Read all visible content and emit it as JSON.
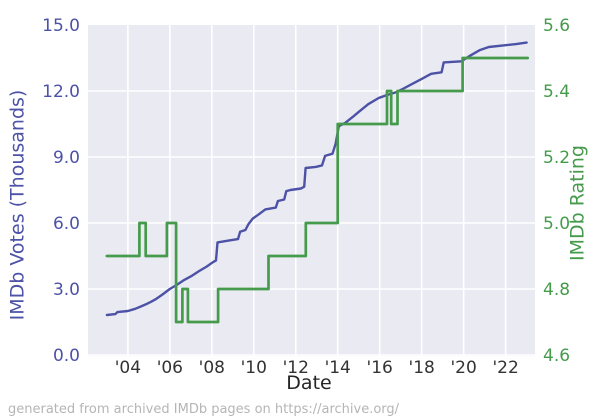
{
  "footer": {
    "text": "generated from archived IMDb pages on https://archive.org/"
  },
  "colors": {
    "votes_line": "#4c52a5",
    "rating_line": "#459b4b",
    "plot_background": "#eaeaf2",
    "gridline": "#ffffff",
    "x_tick_text": "#333333",
    "footer_text": "#b5b5b5",
    "figure_background": "#ffffff"
  },
  "chart_data": {
    "type": "line",
    "title": "",
    "xlabel": "Date",
    "ylabel_left": "IMDb Votes (Thousands)",
    "ylabel_right": "IMDb Rating",
    "grid": true,
    "legend": "none",
    "xlim": [
      2002.1,
      2023.4
    ],
    "ylim_left": [
      0,
      15
    ],
    "ylim_right": [
      4.6,
      5.6
    ],
    "x_ticks": [
      {
        "label": "'04",
        "year": 2004
      },
      {
        "label": "'06",
        "year": 2006
      },
      {
        "label": "'08",
        "year": 2008
      },
      {
        "label": "'10",
        "year": 2010
      },
      {
        "label": "'12",
        "year": 2012
      },
      {
        "label": "'14",
        "year": 2014
      },
      {
        "label": "'16",
        "year": 2016
      },
      {
        "label": "'18",
        "year": 2018
      },
      {
        "label": "'20",
        "year": 2020
      },
      {
        "label": "'22",
        "year": 2022
      }
    ],
    "left_ticks": [
      {
        "label": "0.0",
        "value": 0
      },
      {
        "label": "3.0",
        "value": 3
      },
      {
        "label": "6.0",
        "value": 6
      },
      {
        "label": "9.0",
        "value": 9
      },
      {
        "label": "12.0",
        "value": 12
      },
      {
        "label": "15.0",
        "value": 15
      }
    ],
    "right_ticks": [
      {
        "label": "4.6",
        "value": 4.6
      },
      {
        "label": "4.8",
        "value": 4.8
      },
      {
        "label": "5.0",
        "value": 5.0
      },
      {
        "label": "5.2",
        "value": 5.2
      },
      {
        "label": "5.4",
        "value": 5.4
      },
      {
        "label": "5.6",
        "value": 5.6
      }
    ],
    "series": [
      {
        "name": "IMDb Votes (Thousands)",
        "axis": "left",
        "style": "line",
        "color": "#4c52a5",
        "points": [
          [
            2003.0,
            1.82
          ],
          [
            2003.4,
            1.86
          ],
          [
            2003.5,
            1.95
          ],
          [
            2004.0,
            2.0
          ],
          [
            2004.35,
            2.1
          ],
          [
            2004.6,
            2.2
          ],
          [
            2004.85,
            2.3
          ],
          [
            2005.1,
            2.42
          ],
          [
            2005.35,
            2.55
          ],
          [
            2005.65,
            2.75
          ],
          [
            2006.0,
            3.0
          ],
          [
            2006.35,
            3.2
          ],
          [
            2006.7,
            3.42
          ],
          [
            2007.05,
            3.6
          ],
          [
            2007.4,
            3.82
          ],
          [
            2007.75,
            4.02
          ],
          [
            2008.05,
            4.22
          ],
          [
            2008.2,
            4.3
          ],
          [
            2008.27,
            5.12
          ],
          [
            2008.8,
            5.2
          ],
          [
            2009.25,
            5.27
          ],
          [
            2009.35,
            5.6
          ],
          [
            2009.6,
            5.68
          ],
          [
            2009.75,
            5.95
          ],
          [
            2009.95,
            6.2
          ],
          [
            2010.25,
            6.4
          ],
          [
            2010.55,
            6.62
          ],
          [
            2011.05,
            6.7
          ],
          [
            2011.15,
            7.0
          ],
          [
            2011.45,
            7.07
          ],
          [
            2011.55,
            7.45
          ],
          [
            2011.75,
            7.5
          ],
          [
            2012.25,
            7.57
          ],
          [
            2012.4,
            7.65
          ],
          [
            2012.47,
            8.5
          ],
          [
            2012.95,
            8.55
          ],
          [
            2013.25,
            8.62
          ],
          [
            2013.4,
            9.05
          ],
          [
            2013.75,
            9.15
          ],
          [
            2013.9,
            9.6
          ],
          [
            2014.05,
            10.4
          ],
          [
            2014.35,
            10.55
          ],
          [
            2014.75,
            10.85
          ],
          [
            2015.0,
            11.05
          ],
          [
            2015.45,
            11.4
          ],
          [
            2015.95,
            11.68
          ],
          [
            2016.35,
            11.82
          ],
          [
            2016.8,
            11.95
          ],
          [
            2017.05,
            12.07
          ],
          [
            2017.5,
            12.3
          ],
          [
            2018.0,
            12.55
          ],
          [
            2018.45,
            12.78
          ],
          [
            2018.95,
            12.85
          ],
          [
            2019.05,
            13.3
          ],
          [
            2019.9,
            13.35
          ],
          [
            2020.3,
            13.6
          ],
          [
            2020.75,
            13.85
          ],
          [
            2021.2,
            14.0
          ],
          [
            2022.0,
            14.08
          ],
          [
            2022.5,
            14.13
          ],
          [
            2023.0,
            14.2
          ]
        ]
      },
      {
        "name": "IMDb Rating",
        "axis": "right",
        "style": "step-after",
        "color": "#459b4b",
        "points": [
          [
            2003.0,
            4.9
          ],
          [
            2004.55,
            5.0
          ],
          [
            2004.85,
            4.9
          ],
          [
            2005.86,
            5.0
          ],
          [
            2006.3,
            4.7
          ],
          [
            2006.6,
            4.8
          ],
          [
            2006.86,
            4.7
          ],
          [
            2008.3,
            4.8
          ],
          [
            2010.7,
            4.9
          ],
          [
            2012.48,
            5.0
          ],
          [
            2014.0,
            5.3
          ],
          [
            2016.35,
            5.4
          ],
          [
            2016.55,
            5.3
          ],
          [
            2016.85,
            5.4
          ],
          [
            2019.95,
            5.5
          ],
          [
            2023.05,
            5.5
          ]
        ]
      }
    ]
  }
}
